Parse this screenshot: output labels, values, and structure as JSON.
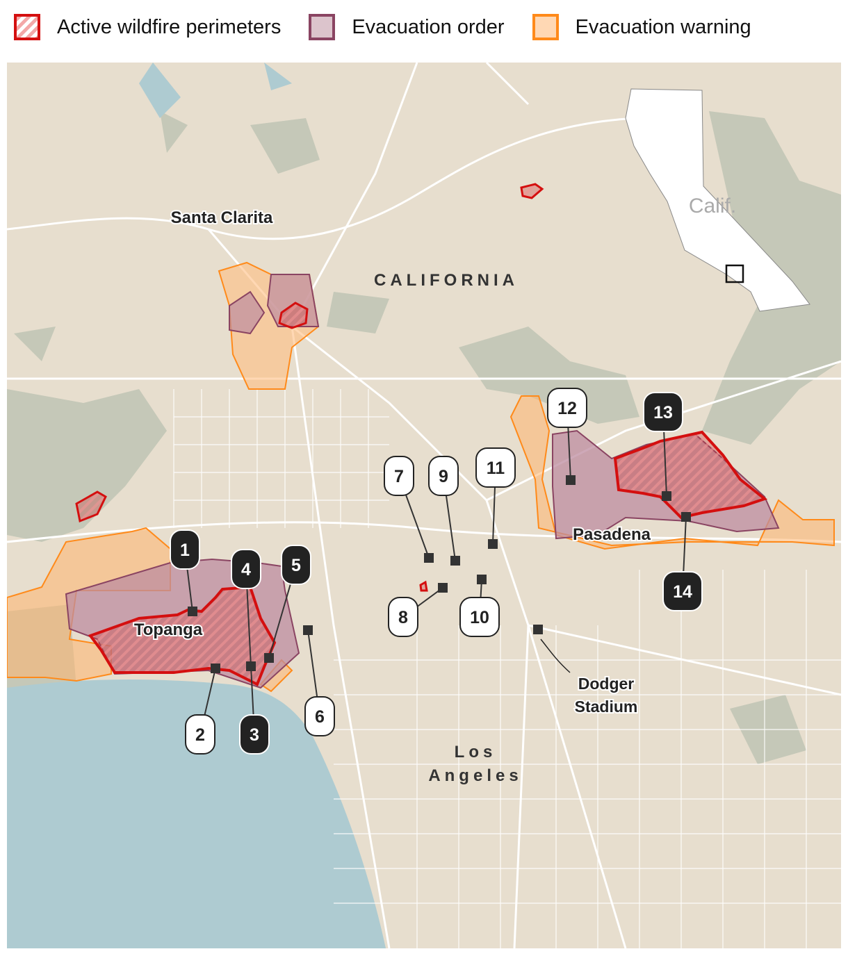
{
  "legend": {
    "fire": "Active wildfire perimeters",
    "order": "Evacuation order",
    "warning": "Evacuation warning"
  },
  "colors": {
    "fire": "#d40f0f",
    "order_fill": "#dcc4cc",
    "order_stroke": "#8a4462",
    "warning_fill": "#ffd8b4",
    "warning_stroke": "#ff8a1a",
    "land": "#e7dece",
    "terrain": "#c5c8b8",
    "water": "#aecbd1",
    "marker_dark": "#222222"
  },
  "places": {
    "santa_clarita": "Santa Clarita",
    "california": "CALIFORNIA",
    "topanga": "Topanga",
    "pasadena": "Pasadena",
    "los": "Los",
    "angeles": "Angeles",
    "dodger1": "Dodger",
    "dodger2": "Stadium",
    "inset": "Calif."
  },
  "markers": [
    {
      "label": "1",
      "style": "dark"
    },
    {
      "label": "2",
      "style": "light"
    },
    {
      "label": "3",
      "style": "dark"
    },
    {
      "label": "4",
      "style": "dark"
    },
    {
      "label": "5",
      "style": "dark"
    },
    {
      "label": "6",
      "style": "light"
    },
    {
      "label": "7",
      "style": "light"
    },
    {
      "label": "8",
      "style": "light"
    },
    {
      "label": "9",
      "style": "light"
    },
    {
      "label": "10",
      "style": "light"
    },
    {
      "label": "11",
      "style": "light"
    },
    {
      "label": "12",
      "style": "light"
    },
    {
      "label": "13",
      "style": "dark"
    },
    {
      "label": "14",
      "style": "dark"
    }
  ]
}
